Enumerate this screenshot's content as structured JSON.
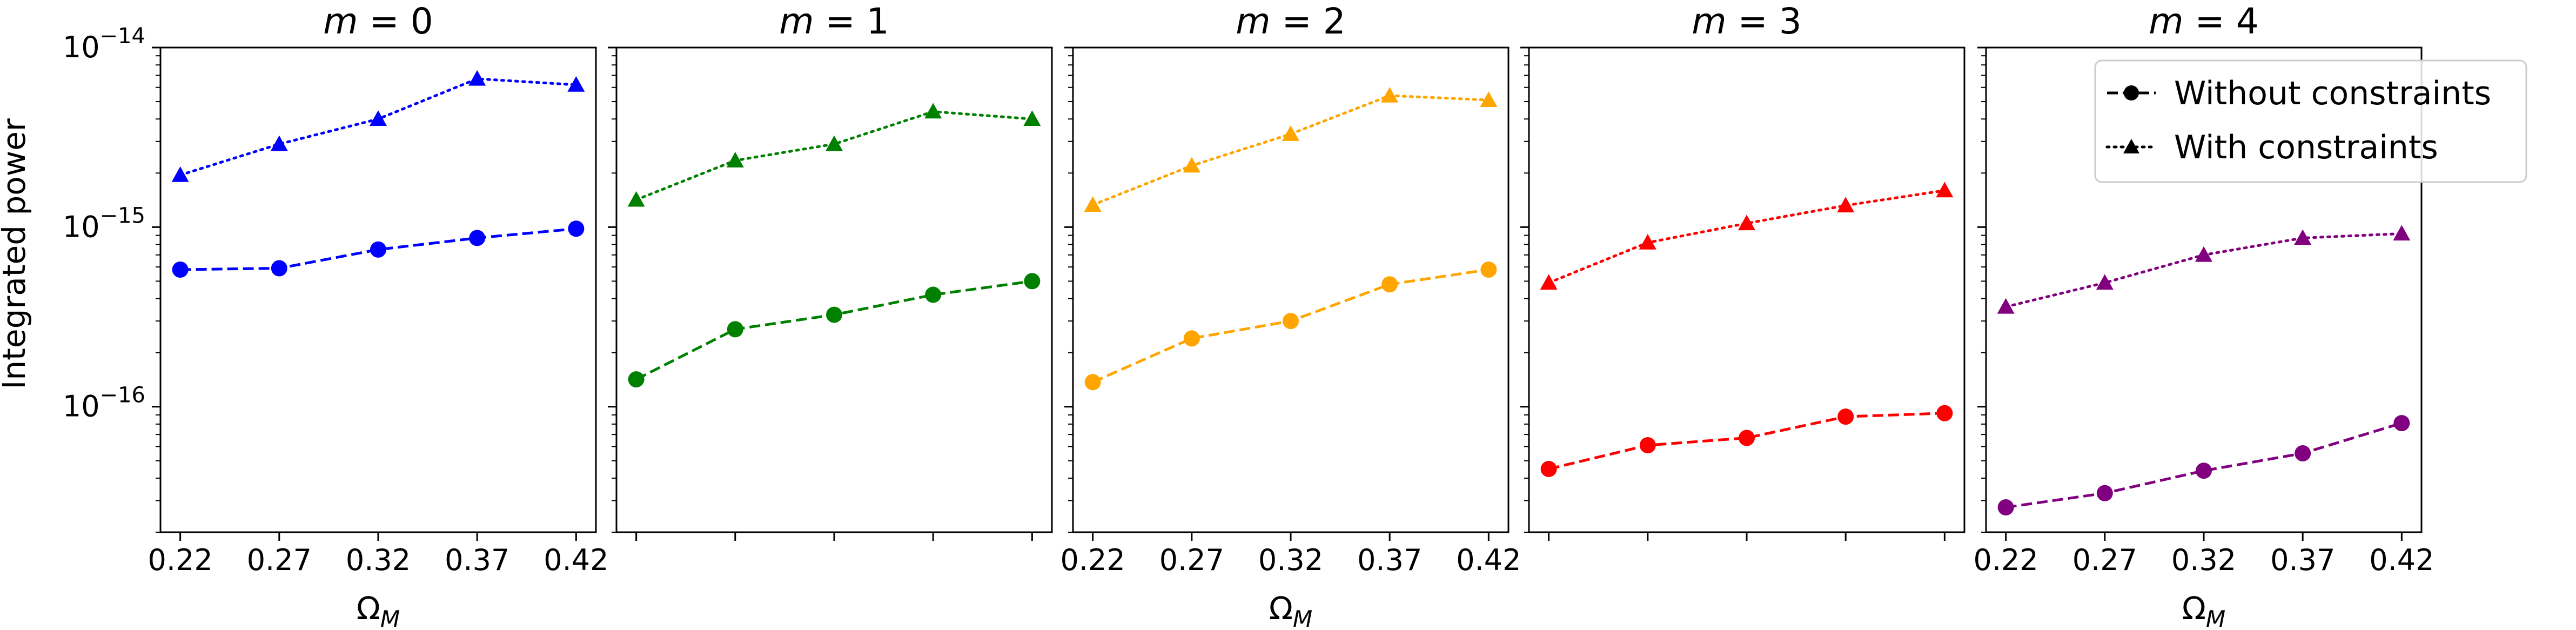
{
  "chart_data": {
    "type": "line",
    "ylabel": "Integrated power",
    "xlabel": "Ω",
    "xlabel_sub": "M",
    "y_scale": "log",
    "ylim": [
      2e-17,
      1e-14
    ],
    "y_tick_base": "10",
    "y_ticks": [
      {
        "value": 1e-14,
        "exponent": "−14"
      },
      {
        "value": 1e-15,
        "exponent": "−15"
      },
      {
        "value": 1e-16,
        "exponent": "−16"
      }
    ],
    "x_values": [
      0.22,
      0.27,
      0.32,
      0.37,
      0.42
    ],
    "x_tick_labels": [
      "0.22",
      "0.27",
      "0.32",
      "0.37",
      "0.42"
    ],
    "x_tick_labels_on_panels": [
      0,
      2,
      4
    ],
    "grid": false,
    "legend": {
      "placement": "top-right of last panel",
      "entries": [
        {
          "label": "Without constraints",
          "linestyle": "dashed",
          "marker": "circle"
        },
        {
          "label": "With constraints",
          "linestyle": "dotted",
          "marker": "triangle"
        }
      ]
    },
    "panels": [
      {
        "title_var": "m",
        "title_eq": " = 0",
        "color": "#0000ff",
        "series": [
          {
            "name": "Without constraints",
            "values": [
              5.8e-16,
              5.9e-16,
              7.5e-16,
              8.7e-16,
              9.8e-16
            ]
          },
          {
            "name": "With constraints",
            "values": [
              1.95e-15,
              2.9e-15,
              4e-15,
              6.7e-15,
              6.2e-15
            ]
          }
        ]
      },
      {
        "title_var": "m",
        "title_eq": " = 1",
        "color": "#008000",
        "series": [
          {
            "name": "Without constraints",
            "values": [
              1.42e-16,
              2.7e-16,
              3.25e-16,
              4.2e-16,
              5e-16
            ]
          },
          {
            "name": "With constraints",
            "values": [
              1.42e-15,
              2.35e-15,
              2.9e-15,
              4.4e-15,
              4e-15
            ]
          }
        ]
      },
      {
        "title_var": "m",
        "title_eq": " = 2",
        "color": "#ffa500",
        "series": [
          {
            "name": "Without constraints",
            "values": [
              1.37e-16,
              2.4e-16,
              3e-16,
              4.8e-16,
              5.8e-16
            ]
          },
          {
            "name": "With constraints",
            "values": [
              1.33e-15,
              2.2e-15,
              3.3e-15,
              5.4e-15,
              5.1e-15
            ]
          }
        ]
      },
      {
        "title_var": "m",
        "title_eq": " = 3",
        "color": "#ff0000",
        "series": [
          {
            "name": "Without constraints",
            "values": [
              4.5e-17,
              6.1e-17,
              6.7e-17,
              8.8e-17,
              9.2e-17
            ]
          },
          {
            "name": "With constraints",
            "values": [
              4.9e-16,
              8.2e-16,
              1.05e-15,
              1.32e-15,
              1.6e-15
            ]
          }
        ]
      },
      {
        "title_var": "m",
        "title_eq": " = 4",
        "color": "#800080",
        "series": [
          {
            "name": "Without constraints",
            "values": [
              2.75e-17,
              3.3e-17,
              4.4e-17,
              5.5e-17,
              8.1e-17
            ]
          },
          {
            "name": "With constraints",
            "values": [
              3.6e-16,
              4.9e-16,
              7e-16,
              8.7e-16,
              9.2e-16
            ]
          }
        ]
      }
    ]
  }
}
